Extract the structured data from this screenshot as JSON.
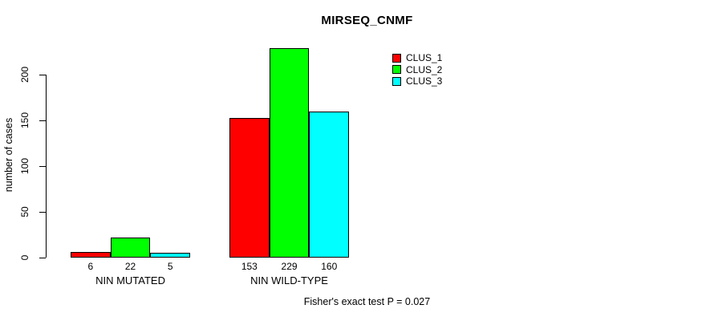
{
  "chart_data": {
    "type": "bar",
    "title": "MIRSEQ_CNMF",
    "ylabel": "number of cases",
    "xlabel": "",
    "categories": [
      "NIN MUTATED",
      "NIN WILD-TYPE"
    ],
    "series": [
      {
        "name": "CLUS_1",
        "color": "#ff0000",
        "values": [
          6,
          153
        ]
      },
      {
        "name": "CLUS_2",
        "color": "#00ff00",
        "values": [
          22,
          229
        ]
      },
      {
        "name": "CLUS_3",
        "color": "#00ffff",
        "values": [
          5,
          160
        ]
      }
    ],
    "yticks": [
      0,
      50,
      100,
      150,
      200
    ],
    "ylim": [
      0,
      200
    ],
    "grid": false,
    "legend_position": "inside-top-right",
    "bar_border_color": "#000000",
    "value_labels_shown": true,
    "annotation": "Fisher's exact test P = 0.027"
  }
}
